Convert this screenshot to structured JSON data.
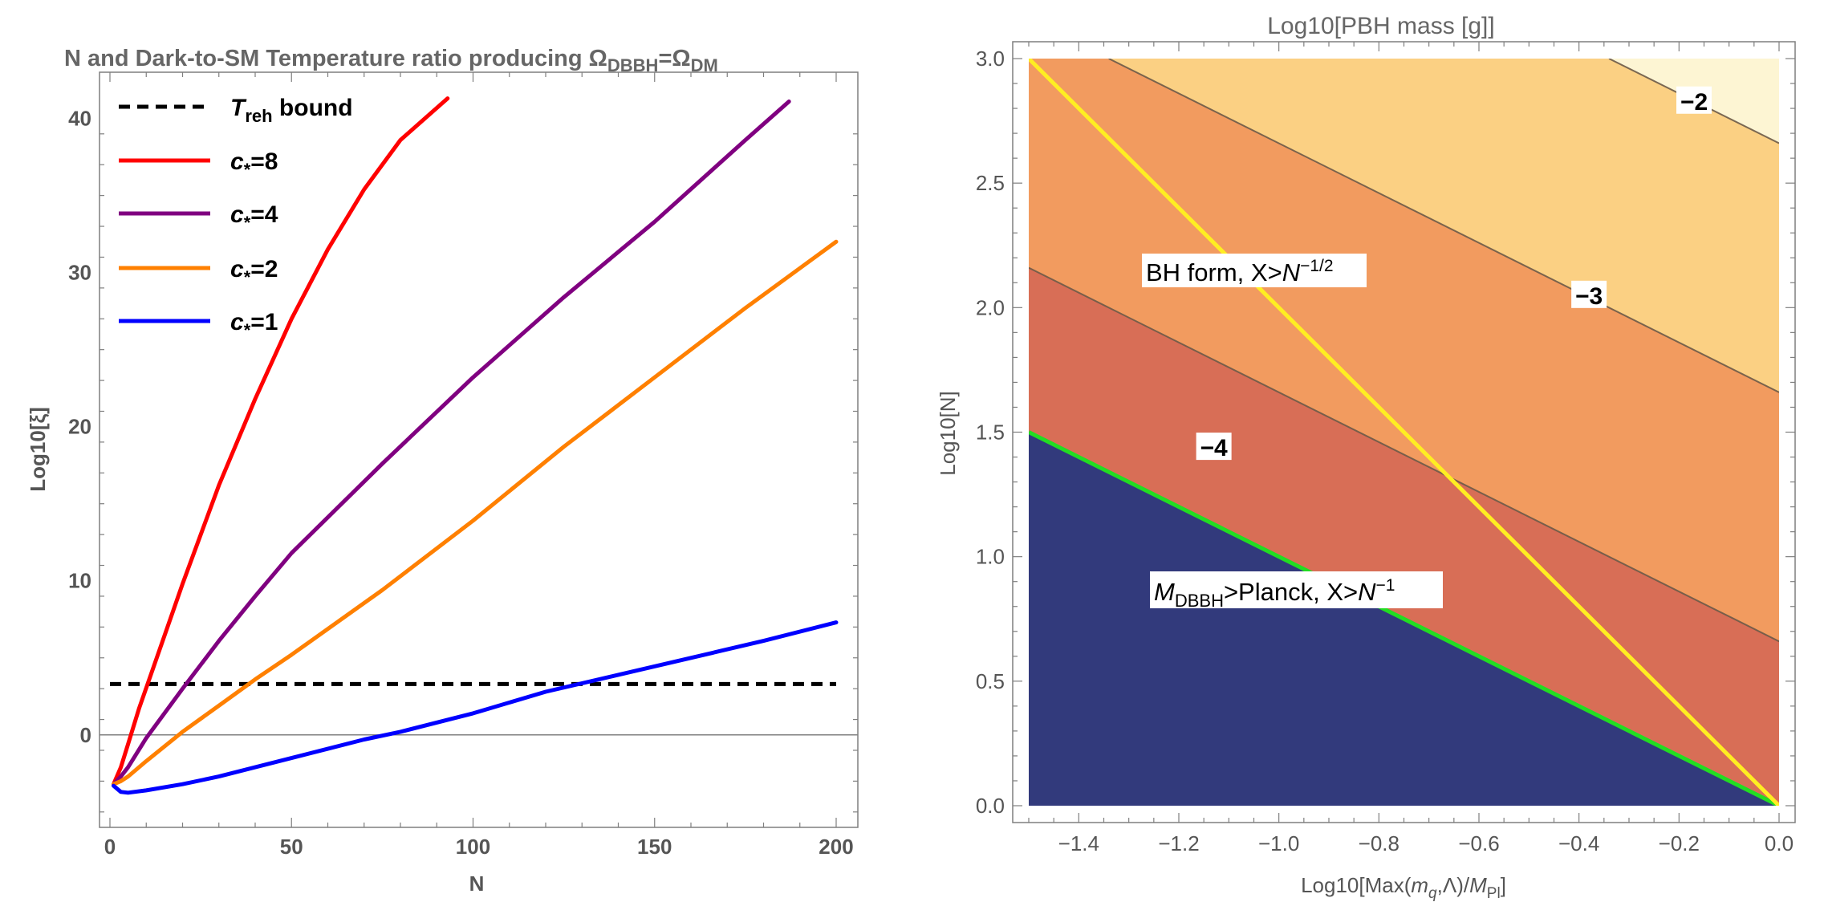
{
  "chart_data": [
    {
      "type": "line",
      "title_prefix": "N and Dark-to-SM Temperature ratio producing Ω",
      "title_sub1": "DBBH",
      "title_mid": "=Ω",
      "title_sub2": "DM",
      "xlabel": "N",
      "ylabel": "Log10[ξ]",
      "xlim": [
        0,
        200
      ],
      "ylim": [
        -6,
        43
      ],
      "xticks": [
        0,
        50,
        100,
        150,
        200
      ],
      "yticks": [
        0,
        10,
        20,
        30,
        40
      ],
      "legend_position": "top-left",
      "bound": {
        "name_main": "T",
        "name_sub": "reh",
        "name_rest": " bound",
        "y": 3.3,
        "color": "#000000",
        "style": "dashed"
      },
      "series": [
        {
          "name_main": "c",
          "name_sub": "*",
          "name_rest": "=8",
          "color": "#ff0000",
          "x": [
            1,
            3,
            5,
            8,
            12,
            20,
            30,
            40,
            50,
            60,
            70,
            80,
            93
          ],
          "y": [
            -3.2,
            -2.1,
            -0.6,
            1.7,
            4.4,
            9.8,
            16.2,
            21.8,
            27.0,
            31.5,
            35.4,
            38.6,
            41.3
          ]
        },
        {
          "name_main": "c",
          "name_sub": "*",
          "name_rest": "=4",
          "color": "#800080",
          "x": [
            1,
            3,
            5,
            10,
            20,
            30,
            40,
            50,
            75,
            100,
            125,
            150,
            175,
            187
          ],
          "y": [
            -3.2,
            -2.7,
            -2.1,
            -0.2,
            3.0,
            6.1,
            9.0,
            11.8,
            17.6,
            23.2,
            28.4,
            33.3,
            38.6,
            41.1
          ]
        },
        {
          "name_main": "c",
          "name_sub": "*",
          "name_rest": "=2",
          "color": "#ff8000",
          "x": [
            1,
            3,
            5,
            10,
            20,
            30,
            40,
            50,
            75,
            100,
            125,
            150,
            175,
            200
          ],
          "y": [
            -3.2,
            -3.0,
            -2.7,
            -1.7,
            0.2,
            1.9,
            3.6,
            5.2,
            9.4,
            13.9,
            18.7,
            23.2,
            27.7,
            32.0
          ]
        },
        {
          "name_main": "c",
          "name_sub": "*",
          "name_rest": "=1",
          "color": "#0000ff",
          "x": [
            1,
            3,
            5,
            10,
            20,
            30,
            40,
            50,
            60,
            70,
            80,
            100,
            120,
            140,
            160,
            180,
            200
          ],
          "y": [
            -3.3,
            -3.7,
            -3.75,
            -3.6,
            -3.2,
            -2.7,
            -2.1,
            -1.5,
            -0.9,
            -0.3,
            0.2,
            1.4,
            2.8,
            3.9,
            5.0,
            6.1,
            7.3
          ]
        }
      ]
    },
    {
      "type": "contour",
      "title": "Log10[PBH mass [g]]",
      "xlabel_prefix": "Log10[Max(",
      "xlabel_mq": "m",
      "xlabel_mq_sub": "q",
      "xlabel_mid": ",Λ)/",
      "xlabel_mpl": "M",
      "xlabel_mpl_sub": "Pl",
      "xlabel_suffix": "]",
      "ylabel": "Log10[N]",
      "xlim": [
        -1.5,
        0.0
      ],
      "ylim": [
        0.0,
        3.0
      ],
      "xticks": [
        -1.4,
        -1.2,
        -1.0,
        -0.8,
        -0.6,
        -0.4,
        -0.2,
        0.0
      ],
      "xtick_labels": [
        "-1.4",
        "-1.2",
        "-1.0",
        "-0.8",
        "-0.6",
        "-0.4",
        "-0.2",
        "0.0"
      ],
      "yticks": [
        0.0,
        0.5,
        1.0,
        1.5,
        2.0,
        2.5,
        3.0
      ],
      "ytick_labels": [
        "0.0",
        "0.5",
        "1.0",
        "1.5",
        "2.0",
        "2.5",
        "3.0"
      ],
      "bands": [
        {
          "color": "#fdf5d3",
          "range": "> -2"
        },
        {
          "color": "#fbd083",
          "range": "-3 to -2"
        },
        {
          "color": "#f29b5f",
          "range": "-4 to -3"
        },
        {
          "color": "#d86e56",
          "range": "< -4"
        }
      ],
      "contour_lines": [
        {
          "level": "-2",
          "from": [
            -0.34,
            3.0
          ],
          "to": [
            0.0,
            2.66
          ],
          "label_at": [
            -0.17,
            2.83
          ]
        },
        {
          "level": "-3",
          "from": [
            -1.34,
            3.0
          ],
          "to": [
            0.0,
            1.66
          ],
          "label_at": [
            -0.38,
            2.05
          ]
        },
        {
          "level": "-4",
          "from": [
            -1.5,
            2.16
          ],
          "to": [
            0.0,
            0.66
          ],
          "label_at": [
            -1.13,
            1.44
          ]
        }
      ],
      "excluded_region": {
        "color": "#323a7c",
        "label_main": "M",
        "label_sub": "DBBH",
        "label_rest": ">Planck, X>",
        "label_N": "N",
        "label_exp": "−1"
      },
      "boundaries": [
        {
          "name": "green",
          "color": "#22dd22",
          "from": [
            -1.5,
            1.5
          ],
          "to": [
            0.0,
            0.0
          ]
        },
        {
          "name": "yellow",
          "color": "#ffee22",
          "from": [
            -1.5,
            3.0
          ],
          "to": [
            0.0,
            0.0
          ]
        }
      ],
      "region_labels": {
        "bh_form_prefix": "BH form, X>",
        "bh_form_N": "N",
        "bh_form_exp": "−1/2"
      },
      "contour_label_texts": {
        "m2": "−2",
        "m3": "−3",
        "m4": "−4"
      }
    }
  ]
}
